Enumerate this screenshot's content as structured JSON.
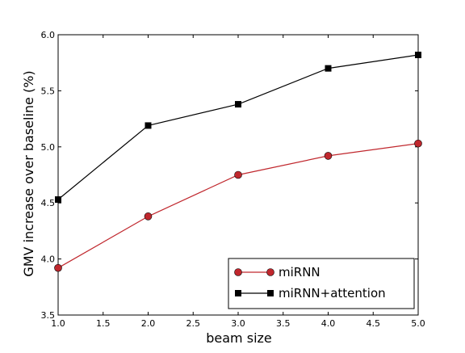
{
  "chart_data": {
    "type": "line",
    "title": "",
    "xlabel": "beam size",
    "ylabel": "GMV increase over baseline (%)",
    "xlim": [
      1.0,
      5.0
    ],
    "ylim": [
      3.5,
      6.0
    ],
    "xticks": [
      "1.0",
      "1.5",
      "2.0",
      "2.5",
      "3.0",
      "3.5",
      "4.0",
      "4.5",
      "5.0"
    ],
    "yticks": [
      "3.5",
      "4.0",
      "4.5",
      "5.0",
      "5.5",
      "6.0"
    ],
    "grid": false,
    "legend_position": "lower-right",
    "x": [
      1.0,
      2.0,
      3.0,
      4.0,
      5.0
    ],
    "series": [
      {
        "name": "miRNN",
        "values": [
          3.92,
          4.38,
          4.75,
          4.92,
          5.03
        ],
        "color": "#c0272d",
        "marker": "circle"
      },
      {
        "name": "miRNN+attention",
        "values": [
          4.53,
          5.19,
          5.38,
          5.7,
          5.82
        ],
        "color": "#000000",
        "marker": "square"
      }
    ]
  }
}
